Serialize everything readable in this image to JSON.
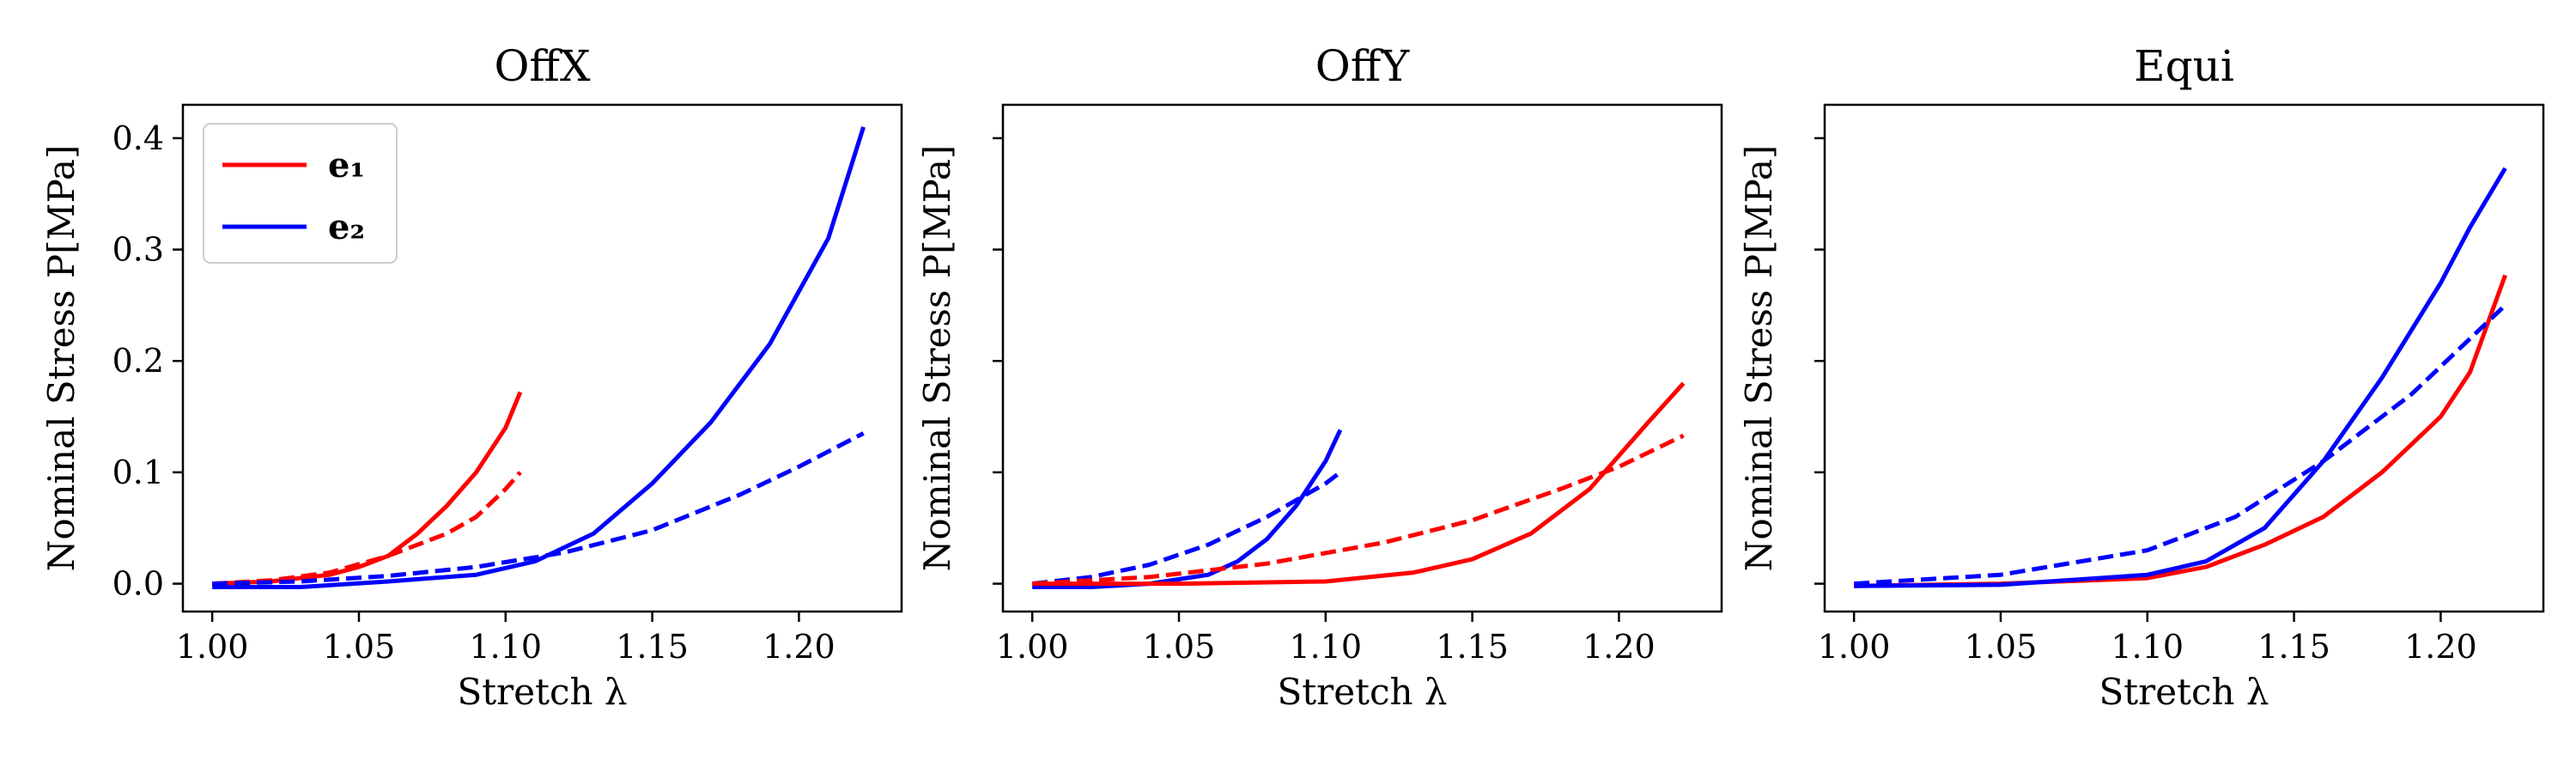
{
  "chart_data": [
    {
      "type": "line",
      "title": "OffX",
      "xlabel": "Stretch λ",
      "ylabel": "Nominal Stress P[MPa]",
      "xlim": [
        0.99,
        1.235
      ],
      "ylim": [
        -0.025,
        0.43
      ],
      "xticks": [
        "1.00",
        "1.05",
        "1.10",
        "1.15",
        "1.20"
      ],
      "yticks": [
        "0.0",
        "0.1",
        "0.2",
        "0.3",
        "0.4"
      ],
      "show_ytick_labels": true,
      "legend": {
        "placement": "top-left",
        "entries": [
          {
            "label": "e₁",
            "color": "#ff0000"
          },
          {
            "label": "e₂",
            "color": "#0000ff"
          }
        ]
      },
      "series": [
        {
          "color": "#ff0000",
          "style": "solid",
          "x": [
            1.0,
            1.02,
            1.04,
            1.05,
            1.06,
            1.07,
            1.08,
            1.09,
            1.1,
            1.105
          ],
          "y": [
            0.0,
            0.002,
            0.008,
            0.015,
            0.025,
            0.045,
            0.07,
            0.1,
            0.14,
            0.172
          ]
        },
        {
          "color": "#ff0000",
          "style": "dashed",
          "x": [
            1.0,
            1.02,
            1.04,
            1.06,
            1.08,
            1.09,
            1.1,
            1.105
          ],
          "y": [
            0.0,
            0.003,
            0.01,
            0.025,
            0.045,
            0.06,
            0.085,
            0.1
          ]
        },
        {
          "color": "#0000ff",
          "style": "solid",
          "x": [
            1.0,
            1.03,
            1.06,
            1.09,
            1.11,
            1.13,
            1.15,
            1.17,
            1.19,
            1.21,
            1.222
          ],
          "y": [
            -0.003,
            -0.003,
            0.002,
            0.008,
            0.02,
            0.045,
            0.09,
            0.145,
            0.215,
            0.31,
            0.41
          ]
        },
        {
          "color": "#0000ff",
          "style": "dashed",
          "x": [
            1.0,
            1.03,
            1.06,
            1.09,
            1.12,
            1.15,
            1.18,
            1.2,
            1.222
          ],
          "y": [
            0.0,
            0.002,
            0.007,
            0.015,
            0.028,
            0.048,
            0.08,
            0.105,
            0.135
          ]
        }
      ]
    },
    {
      "type": "line",
      "title": "OffY",
      "xlabel": "Stretch λ",
      "ylabel": "Nominal Stress P[MPa]",
      "xlim": [
        0.99,
        1.235
      ],
      "ylim": [
        -0.025,
        0.43
      ],
      "xticks": [
        "1.00",
        "1.05",
        "1.10",
        "1.15",
        "1.20"
      ],
      "yticks": [
        "",
        "",
        "",
        "",
        ""
      ],
      "show_ytick_labels": false,
      "series": [
        {
          "color": "#0000ff",
          "style": "solid",
          "x": [
            1.0,
            1.02,
            1.04,
            1.06,
            1.07,
            1.08,
            1.09,
            1.1,
            1.105
          ],
          "y": [
            -0.003,
            -0.003,
            0.0,
            0.008,
            0.02,
            0.04,
            0.07,
            0.11,
            0.138
          ]
        },
        {
          "color": "#0000ff",
          "style": "dashed",
          "x": [
            1.0,
            1.02,
            1.04,
            1.06,
            1.08,
            1.1,
            1.105
          ],
          "y": [
            0.0,
            0.006,
            0.017,
            0.035,
            0.06,
            0.09,
            0.1
          ]
        },
        {
          "color": "#ff0000",
          "style": "solid",
          "x": [
            1.0,
            1.05,
            1.1,
            1.13,
            1.15,
            1.17,
            1.19,
            1.2,
            1.21,
            1.222
          ],
          "y": [
            0.0,
            0.0,
            0.002,
            0.01,
            0.022,
            0.045,
            0.085,
            0.115,
            0.145,
            0.18
          ]
        },
        {
          "color": "#ff0000",
          "style": "dashed",
          "x": [
            1.0,
            1.04,
            1.08,
            1.12,
            1.15,
            1.18,
            1.2,
            1.222
          ],
          "y": [
            0.0,
            0.006,
            0.018,
            0.037,
            0.057,
            0.085,
            0.105,
            0.133
          ]
        }
      ]
    },
    {
      "type": "line",
      "title": "Equi",
      "xlabel": "Stretch λ",
      "ylabel": "Nominal Stress P[MPa]",
      "xlim": [
        0.99,
        1.235
      ],
      "ylim": [
        -0.025,
        0.43
      ],
      "xticks": [
        "1.00",
        "1.05",
        "1.10",
        "1.15",
        "1.20"
      ],
      "yticks": [
        "",
        "",
        "",
        "",
        ""
      ],
      "show_ytick_labels": false,
      "series": [
        {
          "color": "#ff0000",
          "style": "solid",
          "x": [
            1.0,
            1.05,
            1.1,
            1.12,
            1.14,
            1.16,
            1.18,
            1.2,
            1.21,
            1.222
          ],
          "y": [
            -0.002,
            0.0,
            0.005,
            0.015,
            0.035,
            0.06,
            0.1,
            0.15,
            0.19,
            0.277
          ]
        },
        {
          "color": "#0000ff",
          "style": "solid",
          "x": [
            1.0,
            1.05,
            1.1,
            1.12,
            1.14,
            1.16,
            1.18,
            1.2,
            1.21,
            1.222
          ],
          "y": [
            -0.002,
            -0.001,
            0.008,
            0.02,
            0.05,
            0.11,
            0.185,
            0.27,
            0.32,
            0.373
          ]
        },
        {
          "color": "#0000ff",
          "style": "dashed",
          "x": [
            1.0,
            1.05,
            1.1,
            1.13,
            1.16,
            1.19,
            1.222
          ],
          "y": [
            0.0,
            0.008,
            0.03,
            0.06,
            0.11,
            0.17,
            0.25
          ]
        }
      ]
    }
  ]
}
